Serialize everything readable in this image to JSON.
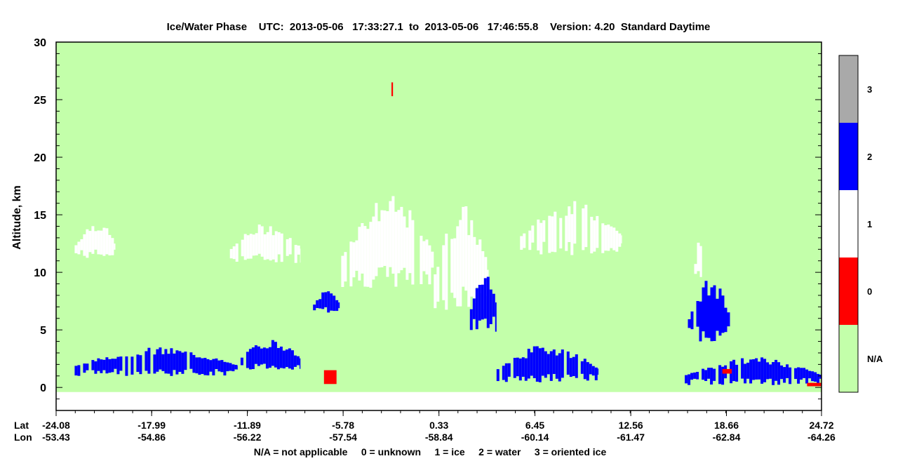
{
  "chart_data": {
    "type": "heatmap",
    "title": "Ice/Water Phase    UTC:  2013-05-06   17:33:27.1  to  2013-05-06   17:46:55.8    Version: 4.20  Standard Daytime",
    "ylabel": "Altitude, km",
    "ylim": [
      -2,
      30
    ],
    "yticks": [
      "0",
      "5",
      "10",
      "15",
      "20",
      "25",
      "30"
    ],
    "x_row_labels": [
      "Lat",
      "Lon"
    ],
    "lat_ticks": [
      "-24.08",
      "-17.99",
      "-11.89",
      "-5.78",
      "0.33",
      "6.45",
      "12.56",
      "18.66",
      "24.72"
    ],
    "lon_ticks": [
      "-53.43",
      "-54.86",
      "-56.22",
      "-57.54",
      "-58.84",
      "-60.14",
      "-61.47",
      "-62.84",
      "-64.26"
    ],
    "colorbar": {
      "categories": [
        {
          "label": "3",
          "color": "#a9a9a9"
        },
        {
          "label": "2",
          "color": "#0000ff"
        },
        {
          "label": "1",
          "color": "#ffffff"
        },
        {
          "label": "0",
          "color": "#ff0000"
        },
        {
          "label": "N/A",
          "color": "#c3ffaa"
        }
      ]
    },
    "background_value": "N/A",
    "legend_text": "N/A = not applicable     0 = unknown     1 = ice     2 = water     3 = oriented ice",
    "features": {
      "ice_clouds": [
        {
          "lat_range": [
            -22.9,
            -20.3
          ],
          "alt_range": [
            11.2,
            14.5
          ]
        },
        {
          "lat_range": [
            -13.0,
            -8.5
          ],
          "alt_range": [
            10.8,
            14.3
          ]
        },
        {
          "lat_range": [
            -5.9,
            0.0
          ],
          "alt_range": [
            8.6,
            16.7
          ]
        },
        {
          "lat_range": [
            0.0,
            3.5
          ],
          "alt_range": [
            6.5,
            16.0
          ]
        },
        {
          "lat_range": [
            5.5,
            12.0
          ],
          "alt_range": [
            11.5,
            16.2
          ]
        },
        {
          "lat_range": [
            16.6,
            17.1
          ],
          "alt_range": [
            9.5,
            13.0
          ]
        }
      ],
      "water_clouds": [
        {
          "lat_range": [
            -22.9,
            -12.5
          ],
          "alt_range": [
            1.0,
            3.5
          ]
        },
        {
          "lat_range": [
            -12.5,
            -8.5
          ],
          "alt_range": [
            1.5,
            4.2
          ]
        },
        {
          "lat_range": [
            -7.7,
            -6.0
          ],
          "alt_range": [
            6.5,
            8.5
          ]
        },
        {
          "lat_range": [
            2.3,
            4.0
          ],
          "alt_range": [
            4.8,
            10.5
          ]
        },
        {
          "lat_range": [
            4.0,
            10.5
          ],
          "alt_range": [
            0.4,
            3.8
          ]
        },
        {
          "lat_range": [
            16.2,
            18.9
          ],
          "alt_range": [
            4.0,
            9.5
          ]
        },
        {
          "lat_range": [
            16.0,
            24.7
          ],
          "alt_range": [
            0.2,
            2.7
          ]
        }
      ],
      "unknown": [
        {
          "lat_range": [
            -7.0,
            -6.2
          ],
          "alt_range": [
            0.3,
            1.5
          ]
        },
        {
          "lat_range": [
            -2.7,
            -2.6
          ],
          "alt_range": [
            25.3,
            26.5
          ]
        },
        {
          "lat_range": [
            18.4,
            19.0
          ],
          "alt_range": [
            1.2,
            1.6
          ]
        },
        {
          "lat_range": [
            23.8,
            24.7
          ],
          "alt_range": [
            0.1,
            0.4
          ]
        }
      ]
    }
  }
}
